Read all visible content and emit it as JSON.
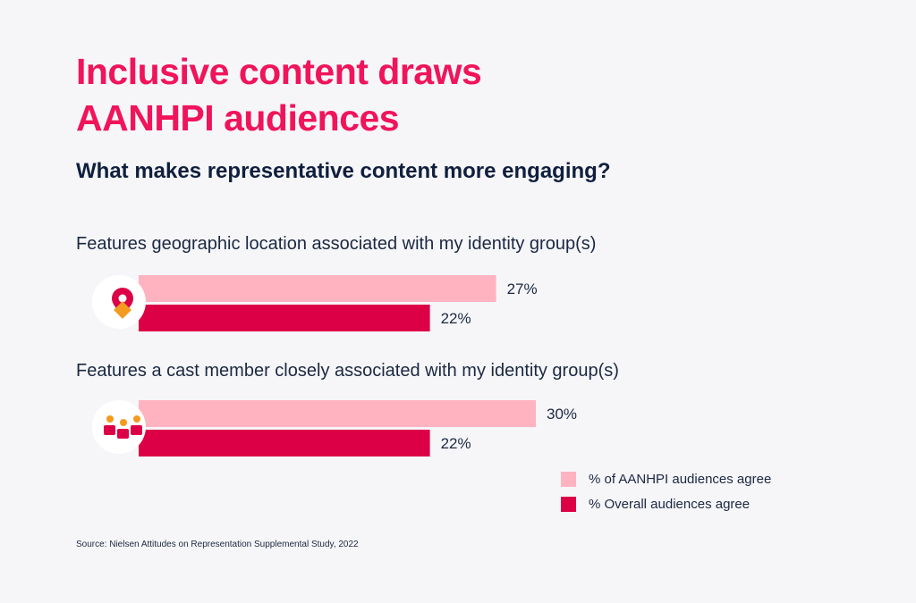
{
  "title_line1": "Inclusive content draws",
  "title_line2": "AANHPI audiences",
  "subtitle": "What makes representative content more engaging?",
  "source": "Source: Nielsen Attitudes on Representation Supplemental Study, 2022",
  "colors": {
    "title": "#f0145a",
    "aanhpi": "#ffb3c1",
    "overall": "#dc0046",
    "icon_orange": "#f39a1f",
    "text": "#1b2840"
  },
  "chart_data": {
    "type": "bar",
    "orientation": "horizontal",
    "categories": [
      "Features geographic location associated with my identity group(s)",
      "Features a cast member closely associated with my identity group(s)"
    ],
    "category_icons": [
      "location-pin-icon",
      "people-group-icon"
    ],
    "series": [
      {
        "name": "% of AANHPI audiences agree",
        "values": [
          27,
          30
        ],
        "labels": [
          "27%",
          "30%"
        ],
        "color": "#ffb3c1"
      },
      {
        "name": "% Overall audiences agree",
        "values": [
          22,
          22
        ],
        "labels": [
          "22%",
          "22%"
        ],
        "color": "#dc0046"
      }
    ],
    "unit": "%",
    "grid": false,
    "legend_position": "bottom-right"
  }
}
